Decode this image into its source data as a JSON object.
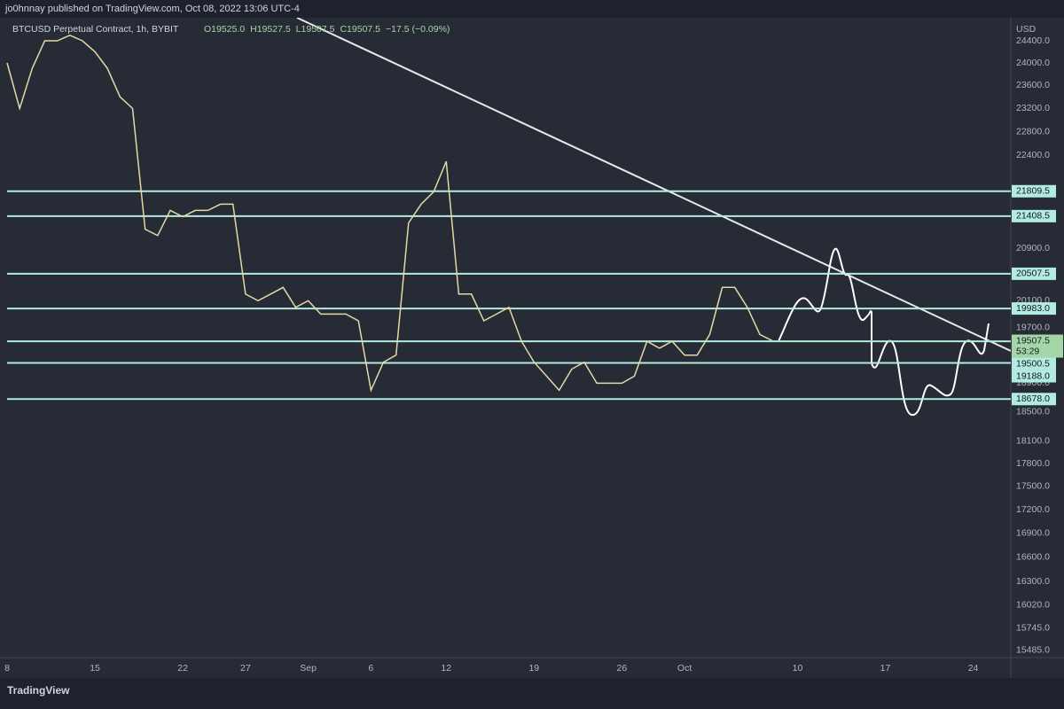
{
  "header": {
    "publisher": "jo0hnnay published on TradingView.com, Oct 08, 2022 13:06 UTC-4"
  },
  "legend": {
    "open": "O19525.0",
    "high": "H19527.5",
    "low": "L19507.5",
    "close": "C19507.5",
    "change": "−17.5 (−0.09%)"
  },
  "footer": {
    "brand": "TradingView"
  },
  "chart_data": {
    "type": "line",
    "log_scale": true,
    "y_unit": "USD",
    "categories": [
      "8",
      null,
      null,
      null,
      null,
      null,
      null,
      "15",
      null,
      null,
      null,
      null,
      null,
      null,
      "22",
      null,
      null,
      null,
      null,
      "27",
      null,
      null,
      null,
      null,
      "Sep",
      null,
      null,
      null,
      null,
      "6",
      null,
      null,
      null,
      null,
      null,
      "12",
      null,
      null,
      null,
      null,
      null,
      null,
      "19",
      null,
      null,
      null,
      null,
      null,
      null,
      "26",
      null,
      null,
      null,
      null,
      "Oct",
      null,
      null,
      null,
      null,
      null,
      null,
      null,
      null,
      "10",
      null,
      null,
      null,
      null,
      null,
      null,
      "17",
      null,
      null,
      null,
      null,
      null,
      null,
      "24",
      null,
      null,
      null
    ],
    "series": [
      {
        "name": "BTCUSD Perpetual Contract, 1h, BYBIT",
        "color": "#e3d9a6",
        "values": [
          24000,
          23200,
          23900,
          24400,
          24400,
          24500,
          24400,
          24200,
          23900,
          23400,
          23200,
          21200,
          21100,
          21500,
          21400,
          21500,
          21500,
          21600,
          21600,
          20200,
          20100,
          20200,
          20300,
          20000,
          20100,
          19900,
          19900,
          19900,
          19800,
          18800,
          19200,
          19300,
          21300,
          21600,
          21800,
          22300,
          20200,
          20200,
          19800,
          19900,
          20000,
          19500,
          19200,
          19000,
          18800,
          19100,
          19200,
          18900,
          18900,
          18900,
          19000,
          19500,
          19400,
          19500,
          19300,
          19300,
          19600,
          20300,
          20300,
          20000,
          19600,
          19507.5,
          null,
          null,
          null,
          null,
          null,
          null,
          null,
          null,
          null,
          null,
          null,
          null,
          null,
          null,
          null,
          null,
          null,
          null,
          null
        ]
      }
    ],
    "ylim": [
      15402,
      24790
    ],
    "yticks": [
      {
        "value": 24400,
        "label": "24400.0"
      },
      {
        "value": 24000,
        "label": "24000.0"
      },
      {
        "value": 23600,
        "label": "23600.0"
      },
      {
        "value": 23200,
        "label": "23200.0"
      },
      {
        "value": 22800,
        "label": "22800.0"
      },
      {
        "value": 22400,
        "label": "22400.0"
      },
      {
        "value": 20900,
        "label": "20900.0"
      },
      {
        "value": 20100,
        "label": "20100.0"
      },
      {
        "value": 19700,
        "label": "19700.0"
      },
      {
        "value": 18900,
        "label": "18900.0"
      },
      {
        "value": 18500,
        "label": "18500.0"
      },
      {
        "value": 18100,
        "label": "18100.0"
      },
      {
        "value": 17800,
        "label": "17800.0"
      },
      {
        "value": 17500,
        "label": "17500.0"
      },
      {
        "value": 17200,
        "label": "17200.0"
      },
      {
        "value": 16900,
        "label": "16900.0"
      },
      {
        "value": 16600,
        "label": "16600.0"
      },
      {
        "value": 16300,
        "label": "16300.0"
      },
      {
        "value": 16020,
        "label": "16020.0"
      },
      {
        "value": 15745,
        "label": "15745.0"
      },
      {
        "value": 15485,
        "label": "15485.0"
      }
    ],
    "levels": [
      {
        "value": 21809.5,
        "label": "21809.5"
      },
      {
        "value": 21408.5,
        "label": "21408.5"
      },
      {
        "value": 20507.5,
        "label": "20507.5"
      },
      {
        "value": 19983,
        "label": "19983.0"
      },
      {
        "value": 19500.5,
        "label": "19500.5"
      },
      {
        "value": 19188,
        "label": "19188.0"
      },
      {
        "value": 18678,
        "label": "18678.0"
      }
    ],
    "level_color": "#b2ebe0",
    "last_price": 19507.5,
    "countdown": "53:29",
    "last_price_color": "#a5d6a7"
  }
}
